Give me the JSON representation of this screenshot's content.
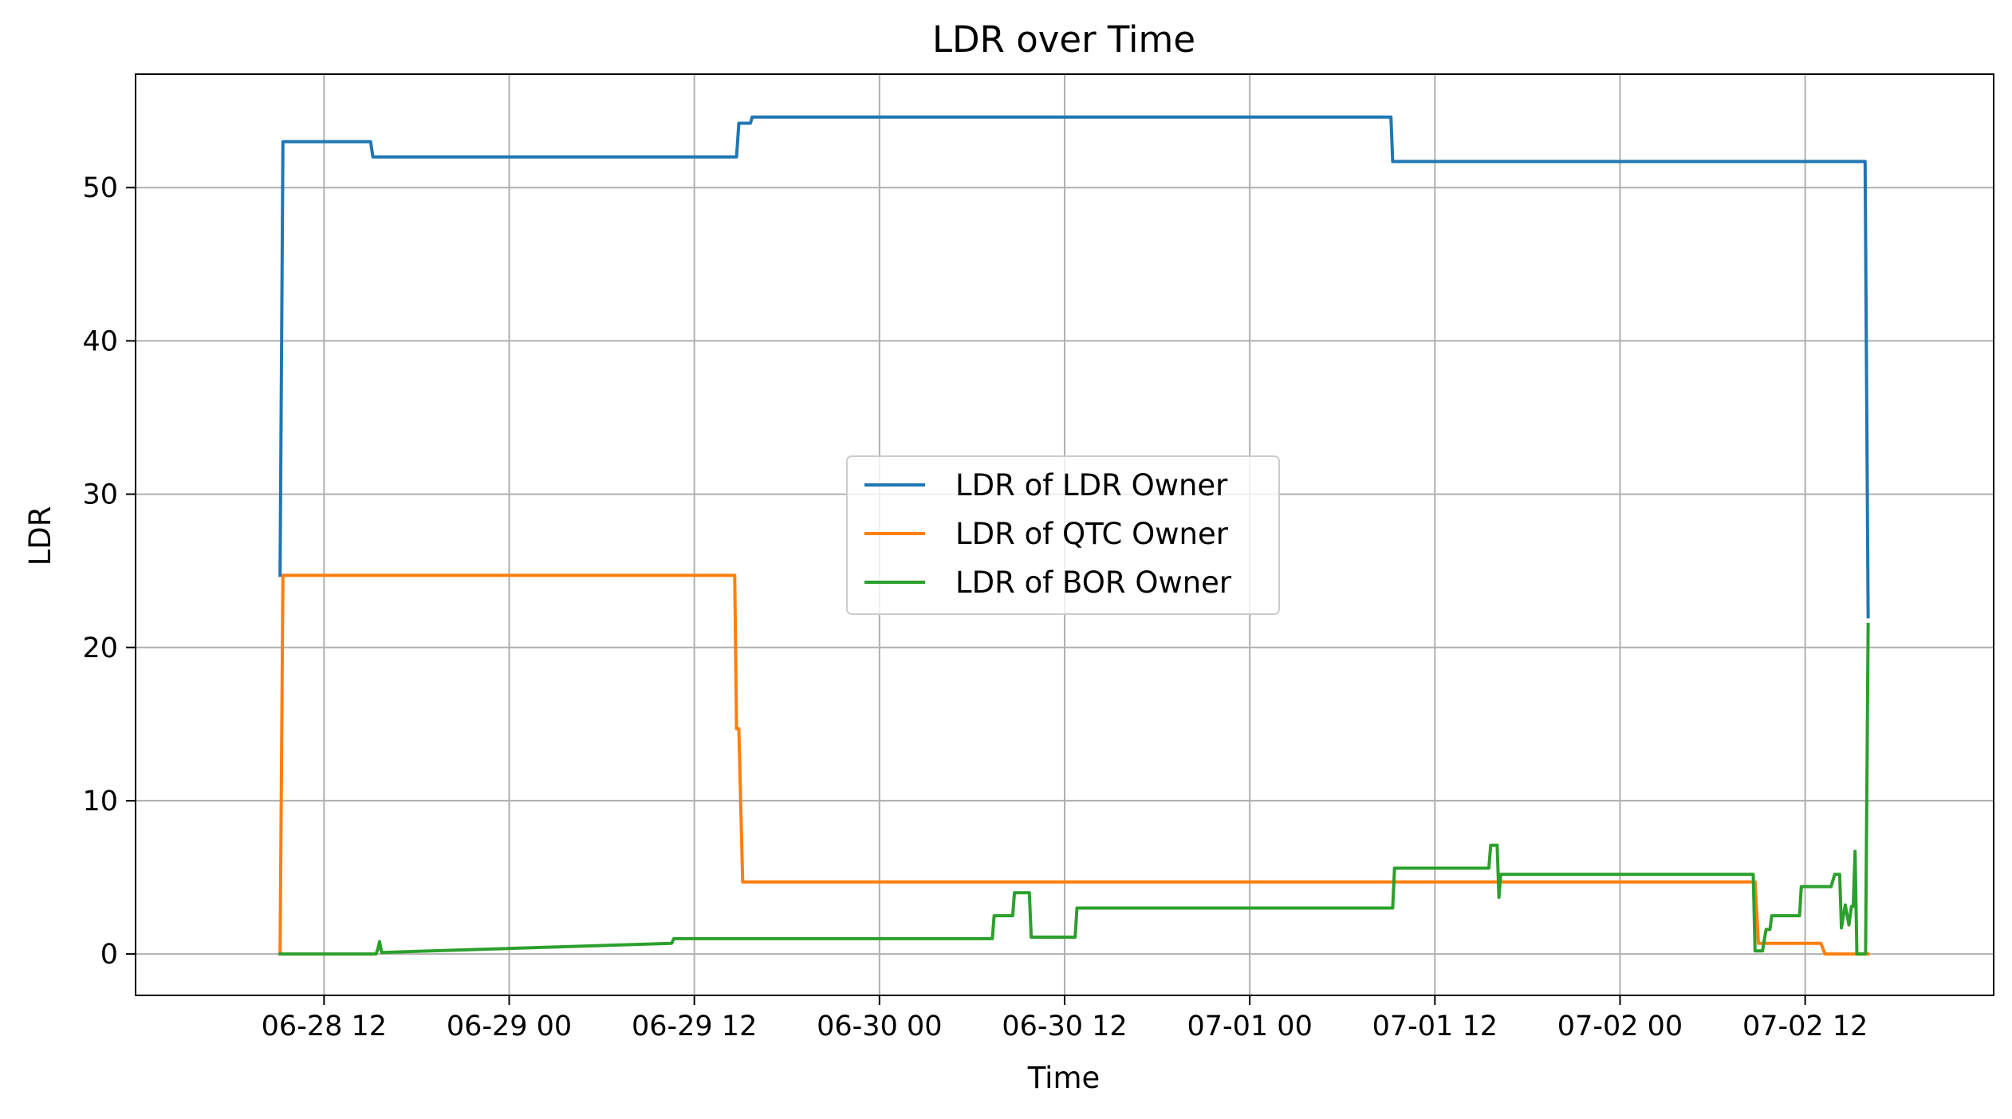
{
  "chart_data": {
    "type": "line",
    "title": "LDR over Time",
    "xlabel": "Time",
    "ylabel": "LDR",
    "x_axis_type": "datetime",
    "xlim": [
      "2020-06-27T23:47",
      "2020-07-03T00:13"
    ],
    "ylim": [
      -2.7,
      57.4
    ],
    "grid": true,
    "legend_position": "center",
    "x_ticks": [
      {
        "value": "2020-06-28T12:00",
        "label": "06-28 12"
      },
      {
        "value": "2020-06-29T00:00",
        "label": "06-29 00"
      },
      {
        "value": "2020-06-29T12:00",
        "label": "06-29 12"
      },
      {
        "value": "2020-06-30T00:00",
        "label": "06-30 00"
      },
      {
        "value": "2020-06-30T12:00",
        "label": "06-30 12"
      },
      {
        "value": "2020-07-01T00:00",
        "label": "07-01 00"
      },
      {
        "value": "2020-07-01T12:00",
        "label": "07-01 12"
      },
      {
        "value": "2020-07-02T00:00",
        "label": "07-02 00"
      },
      {
        "value": "2020-07-02T12:00",
        "label": "07-02 12"
      }
    ],
    "y_ticks": [
      0,
      10,
      20,
      30,
      40,
      50
    ],
    "series": [
      {
        "name": "LDR of LDR Owner",
        "color": "#1f77b4",
        "points": [
          [
            "2020-06-28T09:09",
            24.7
          ],
          [
            "2020-06-28T09:20",
            53.0
          ],
          [
            "2020-06-28T15:01",
            53.0
          ],
          [
            "2020-06-28T15:10",
            52.0
          ],
          [
            "2020-06-29T14:44",
            52.0
          ],
          [
            "2020-06-29T14:53",
            54.2
          ],
          [
            "2020-06-29T15:38",
            54.2
          ],
          [
            "2020-06-29T15:45",
            54.6
          ],
          [
            "2020-07-01T09:09",
            54.6
          ],
          [
            "2020-07-01T09:16",
            51.7
          ],
          [
            "2020-07-02T15:53",
            51.7
          ],
          [
            "2020-07-02T16:05",
            22.0
          ]
        ]
      },
      {
        "name": "LDR of QTC Owner",
        "color": "#ff7f0e",
        "points": [
          [
            "2020-06-28T09:09",
            0.0
          ],
          [
            "2020-06-28T09:20",
            24.7
          ],
          [
            "2020-06-29T14:37",
            24.7
          ],
          [
            "2020-06-29T14:44",
            14.7
          ],
          [
            "2020-06-29T14:53",
            14.7
          ],
          [
            "2020-06-29T15:08",
            4.7
          ],
          [
            "2020-07-02T08:45",
            4.7
          ],
          [
            "2020-07-02T08:58",
            0.7
          ],
          [
            "2020-07-02T13:01",
            0.7
          ],
          [
            "2020-07-02T13:17",
            0.0
          ],
          [
            "2020-07-02T16:05",
            0.0
          ]
        ]
      },
      {
        "name": "LDR of BOR Owner",
        "color": "#2ca02c",
        "points": [
          [
            "2020-06-28T09:09",
            0.0
          ],
          [
            "2020-06-28T15:22",
            0.0
          ],
          [
            "2020-06-28T15:29",
            0.3
          ],
          [
            "2020-06-28T15:36",
            0.8
          ],
          [
            "2020-06-28T15:44",
            0.1
          ],
          [
            "2020-06-29T10:32",
            0.7
          ],
          [
            "2020-06-29T10:40",
            1.0
          ],
          [
            "2020-06-30T07:19",
            1.0
          ],
          [
            "2020-06-30T07:26",
            2.5
          ],
          [
            "2020-06-30T08:38",
            2.5
          ],
          [
            "2020-06-30T08:45",
            4.0
          ],
          [
            "2020-06-30T09:43",
            4.0
          ],
          [
            "2020-06-30T09:50",
            1.1
          ],
          [
            "2020-06-30T12:41",
            1.1
          ],
          [
            "2020-06-30T12:48",
            3.0
          ],
          [
            "2020-07-01T09:16",
            3.0
          ],
          [
            "2020-07-01T09:23",
            5.6
          ],
          [
            "2020-07-01T15:30",
            5.6
          ],
          [
            "2020-07-01T15:37",
            7.1
          ],
          [
            "2020-07-01T16:02",
            7.1
          ],
          [
            "2020-07-01T16:09",
            3.7
          ],
          [
            "2020-07-01T16:16",
            5.2
          ],
          [
            "2020-07-02T08:38",
            5.2
          ],
          [
            "2020-07-02T08:45",
            0.2
          ],
          [
            "2020-07-02T09:14",
            0.2
          ],
          [
            "2020-07-02T09:28",
            1.6
          ],
          [
            "2020-07-02T09:43",
            1.6
          ],
          [
            "2020-07-02T09:50",
            2.5
          ],
          [
            "2020-07-02T11:38",
            2.5
          ],
          [
            "2020-07-02T11:45",
            4.4
          ],
          [
            "2020-07-02T13:41",
            4.4
          ],
          [
            "2020-07-02T13:55",
            5.2
          ],
          [
            "2020-07-02T14:14",
            5.2
          ],
          [
            "2020-07-02T14:21",
            1.7
          ],
          [
            "2020-07-02T14:36",
            3.2
          ],
          [
            "2020-07-02T14:50",
            1.9
          ],
          [
            "2020-07-02T15:00",
            3.1
          ],
          [
            "2020-07-02T15:07",
            3.1
          ],
          [
            "2020-07-02T15:14",
            6.7
          ],
          [
            "2020-07-02T15:21",
            0.0
          ],
          [
            "2020-07-02T15:55",
            0.0
          ],
          [
            "2020-07-02T16:05",
            21.5
          ]
        ]
      }
    ]
  }
}
